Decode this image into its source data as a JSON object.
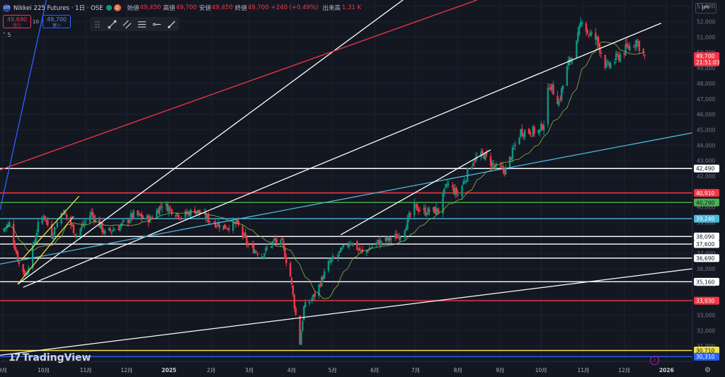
{
  "header": {
    "symbol_icon": "225",
    "title": "Nikkei 225 Futures · 1日 · OSE",
    "d_badge": "D",
    "open_label": "始値",
    "open": "49,450",
    "high_label": "高値",
    "high": "49,700",
    "low_label": "安値",
    "low": "49,450",
    "close_label": "終値",
    "close": "49,700",
    "change": "+240 (+0.49%)",
    "vol_label": "出来高",
    "vol": "1.31 K"
  },
  "trade": {
    "sell_price": "49,690",
    "sell_label": "売り",
    "qty": "10",
    "buy_price": "49,700",
    "buy_label": "買い"
  },
  "indicators_count": "5",
  "currency": "JPY",
  "brand": "TradingView",
  "colors": {
    "up": "#089981",
    "down": "#f23645",
    "bg": "#131722",
    "grid": "#1e222d"
  },
  "chart_data": {
    "type": "candlestick",
    "y_range": [
      30000,
      53400
    ],
    "y_ticks": [
      31000,
      32000,
      33000,
      34000,
      35000,
      36000,
      37000,
      38000,
      39000,
      40000,
      41000,
      42000,
      43000,
      44000,
      45000,
      46000,
      47000,
      48000,
      49000,
      50000,
      51000,
      52000,
      53000
    ],
    "x_labels": [
      {
        "label": "9月",
        "date": "2024-09-01"
      },
      {
        "label": "10月",
        "date": "2024-10-01"
      },
      {
        "label": "11月",
        "date": "2024-11-01"
      },
      {
        "label": "12月",
        "date": "2024-12-01"
      },
      {
        "label": "2025",
        "date": "2025-01-01"
      },
      {
        "label": "2月",
        "date": "2025-02-01"
      },
      {
        "label": "3月",
        "date": "2025-03-01"
      },
      {
        "label": "4月",
        "date": "2025-04-01"
      },
      {
        "label": "5月",
        "date": "2025-05-01"
      },
      {
        "label": "6月",
        "date": "2025-06-01"
      },
      {
        "label": "7月",
        "date": "2025-07-01"
      },
      {
        "label": "8月",
        "date": "2025-08-01"
      },
      {
        "label": "9月",
        "date": "2025-09-01"
      },
      {
        "label": "10月",
        "date": "2025-10-01"
      },
      {
        "label": "11月",
        "date": "2025-11-01"
      },
      {
        "label": "12月",
        "date": "2025-12-01"
      },
      {
        "label": "2026",
        "date": "2026-01-01"
      }
    ],
    "x_range": [
      "2024-08-30",
      "2026-01-20"
    ],
    "price_path": [
      [
        "2024-08-30",
        38400
      ],
      [
        "2024-09-06",
        38900
      ],
      [
        "2024-09-13",
        36300
      ],
      [
        "2024-09-18",
        35600
      ],
      [
        "2024-09-27",
        38800
      ],
      [
        "2024-10-01",
        39500
      ],
      [
        "2024-10-07",
        38200
      ],
      [
        "2024-10-15",
        39800
      ],
      [
        "2024-10-25",
        38200
      ],
      [
        "2024-11-05",
        39600
      ],
      [
        "2024-11-15",
        38300
      ],
      [
        "2024-11-27",
        38800
      ],
      [
        "2024-12-06",
        39500
      ],
      [
        "2024-12-18",
        39200
      ],
      [
        "2024-12-27",
        40200
      ],
      [
        "2025-01-10",
        39400
      ],
      [
        "2025-01-20",
        39800
      ],
      [
        "2025-01-30",
        39200
      ],
      [
        "2025-02-10",
        38700
      ],
      [
        "2025-02-20",
        38900
      ],
      [
        "2025-02-28",
        37500
      ],
      [
        "2025-03-10",
        36900
      ],
      [
        "2025-03-19",
        37800
      ],
      [
        "2025-03-25",
        37600
      ],
      [
        "2025-03-31",
        35500
      ],
      [
        "2025-04-04",
        33000
      ],
      [
        "2025-04-07",
        31200
      ],
      [
        "2025-04-10",
        33500
      ],
      [
        "2025-04-18",
        34300
      ],
      [
        "2025-04-28",
        36300
      ],
      [
        "2025-05-08",
        37200
      ],
      [
        "2025-05-14",
        37800
      ],
      [
        "2025-05-23",
        37000
      ],
      [
        "2025-06-03",
        37700
      ],
      [
        "2025-06-12",
        37900
      ],
      [
        "2025-06-20",
        38200
      ],
      [
        "2025-06-30",
        40000
      ],
      [
        "2025-07-08",
        39700
      ],
      [
        "2025-07-18",
        39800
      ],
      [
        "2025-07-24",
        41500
      ],
      [
        "2025-08-01",
        40800
      ],
      [
        "2025-08-12",
        43000
      ],
      [
        "2025-08-20",
        43400
      ],
      [
        "2025-08-29",
        42500
      ],
      [
        "2025-09-05",
        42400
      ],
      [
        "2025-09-16",
        44900
      ],
      [
        "2025-09-30",
        44900
      ],
      [
        "2025-10-03",
        45500
      ],
      [
        "2025-10-07",
        48000
      ],
      [
        "2025-10-14",
        46800
      ],
      [
        "2025-10-21",
        49300
      ],
      [
        "2025-10-27",
        50500
      ],
      [
        "2025-10-31",
        52300
      ],
      [
        "2025-11-04",
        51300
      ],
      [
        "2025-11-11",
        50800
      ],
      [
        "2025-11-18",
        49000
      ],
      [
        "2025-11-25",
        49600
      ],
      [
        "2025-12-01",
        50100
      ],
      [
        "2025-12-10",
        50800
      ],
      [
        "2025-12-16",
        49700
      ]
    ],
    "horizontal_levels": [
      {
        "price": 42490,
        "label": "42,490",
        "color": "#ffffff"
      },
      {
        "price": 40910,
        "label": "40,910",
        "color": "#f23645"
      },
      {
        "price": 40290,
        "label": "40,290",
        "color": "#4caf50"
      },
      {
        "price": 39240,
        "label": "39,240",
        "color": "#4bb8d6"
      },
      {
        "price": 38090,
        "label": "38,090",
        "color": "#ffffff"
      },
      {
        "price": 37600,
        "label": "37,600",
        "color": "#ffffff"
      },
      {
        "price": 36690,
        "label": "36,690",
        "color": "#ffffff"
      },
      {
        "price": 35160,
        "label": "35,160",
        "color": "#ffffff"
      },
      {
        "price": 33930,
        "label": "33,930",
        "color": "#f23645"
      },
      {
        "price": 30710,
        "label": "30,710",
        "color": "#f0e040"
      },
      {
        "price": 30310,
        "label": "30,310",
        "color": "#2962ff"
      }
    ],
    "trendlines": [
      {
        "color": "#ffffff",
        "p1": [
          "2024-09-12",
          35000
        ],
        "p2": [
          "2025-08-22",
          57400
        ]
      },
      {
        "color": "#ffffff",
        "p1": [
          "2024-09-16",
          34800
        ],
        "p2": [
          "2025-12-28",
          51900
        ]
      },
      {
        "color": "#ffffff",
        "p1": [
          "2024-08-30",
          30400
        ],
        "p2": [
          "2026-01-20",
          36000
        ]
      },
      {
        "color": "#4bb8d6",
        "p1": [
          "2024-08-30",
          36300
        ],
        "p2": [
          "2026-01-20",
          44800
        ]
      },
      {
        "color": "#f23645",
        "p1": [
          "2024-08-30",
          42400
        ],
        "p2": [
          "2025-08-15",
          53400
        ]
      },
      {
        "color": "#2962ff",
        "p1": [
          "2024-08-30",
          39800
        ],
        "p2": [
          "2024-10-03",
          53400
        ]
      },
      {
        "color": "#f0e040",
        "p1": [
          "2024-09-12",
          35000
        ],
        "p2": [
          "2024-10-23",
          39400
        ]
      },
      {
        "color": "#f0e040",
        "p1": [
          "2024-09-15",
          36600
        ],
        "p2": [
          "2024-10-27",
          40700
        ]
      },
      {
        "color": "#ffffff",
        "p1": [
          "2025-05-07",
          38200
        ],
        "p2": [
          "2025-08-25",
          43700
        ]
      }
    ],
    "last_price": {
      "price": 49700,
      "label": "49,700",
      "countdown": "21:51:03",
      "color": "#f23645"
    }
  }
}
